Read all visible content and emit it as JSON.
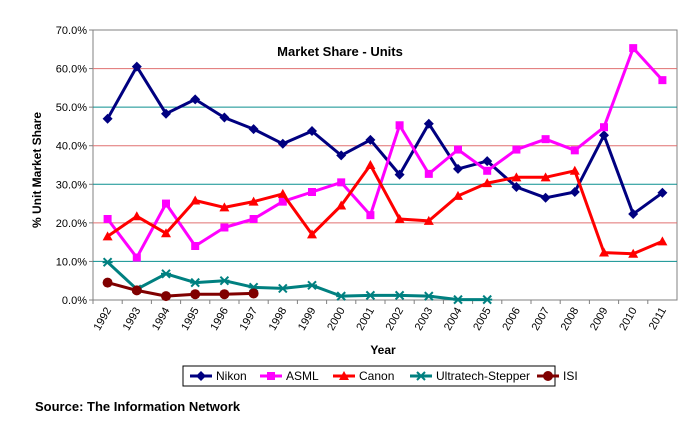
{
  "chart_data": {
    "type": "line",
    "title": "Market Share - Units",
    "xlabel": "Year",
    "ylabel": "% Unit Market Share",
    "ylim": [
      0,
      70
    ],
    "y_ticks": [
      "0.0%",
      "10.0%",
      "20.0%",
      "30.0%",
      "40.0%",
      "50.0%",
      "60.0%",
      "70.0%"
    ],
    "categories": [
      "1992",
      "1993",
      "1994",
      "1995",
      "1996",
      "1997",
      "1998",
      "1999",
      "2000",
      "2001",
      "2002",
      "2003",
      "2004",
      "2005",
      "2006",
      "2007",
      "2008",
      "2009",
      "2010",
      "2011"
    ],
    "grid": true,
    "legend_position": "bottom",
    "series": [
      {
        "name": "Nikon",
        "color": "#000080",
        "marker": "diamond",
        "values": [
          47.0,
          60.5,
          48.3,
          52.0,
          47.3,
          44.3,
          40.5,
          43.8,
          37.5,
          41.5,
          32.5,
          45.7,
          34.0,
          36.0,
          29.3,
          26.5,
          28.0,
          42.7,
          22.3,
          27.8
        ]
      },
      {
        "name": "ASML",
        "color": "#FF00FF",
        "marker": "square",
        "values": [
          21.0,
          11.0,
          25.0,
          14.0,
          18.8,
          21.0,
          25.5,
          28.0,
          30.5,
          22.0,
          45.3,
          32.7,
          39.0,
          33.5,
          39.0,
          41.7,
          38.8,
          44.8,
          65.3,
          57.0
        ]
      },
      {
        "name": "Canon",
        "color": "#FF0000",
        "marker": "triangle",
        "values": [
          16.5,
          21.7,
          17.3,
          25.8,
          24.0,
          25.5,
          27.5,
          17.0,
          24.5,
          35.0,
          21.0,
          20.5,
          27.0,
          30.3,
          31.8,
          31.8,
          33.5,
          12.3,
          12.0,
          15.2
        ]
      },
      {
        "name": "Ultratech-Stepper",
        "color": "#008080",
        "marker": "star",
        "values": [
          9.8,
          2.8,
          6.8,
          4.5,
          5.0,
          3.3,
          3.0,
          3.8,
          1.0,
          1.2,
          1.2,
          1.0,
          0.1,
          0.1,
          null,
          null,
          null,
          null,
          null,
          null
        ]
      },
      {
        "name": "ISI",
        "color": "#800000",
        "marker": "circle",
        "values": [
          4.5,
          2.5,
          1.0,
          1.5,
          1.5,
          1.7,
          null,
          null,
          null,
          null,
          null,
          null,
          null,
          null,
          null,
          null,
          null,
          null,
          null,
          null
        ]
      }
    ]
  },
  "source_text": "Source: The Information Network"
}
